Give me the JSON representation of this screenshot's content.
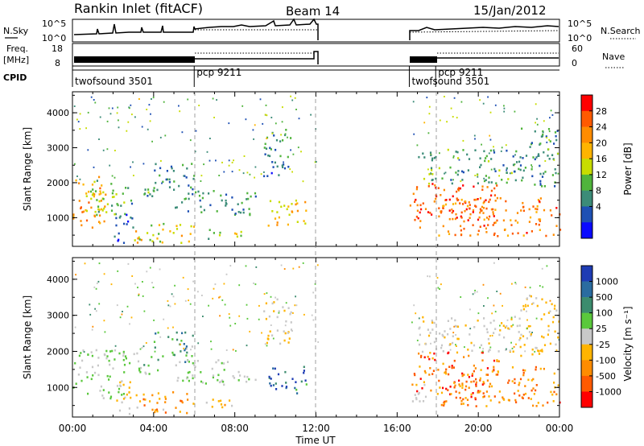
{
  "header": {
    "title": "Rankin Inlet (fitACF)",
    "beam": "Beam 14",
    "date": "15/Jan/2012"
  },
  "params": {
    "nsky_label": "N.Sky",
    "nsky_ticks": [
      "10^5",
      "10^0"
    ],
    "nsearch_label": "N.Search",
    "nsearch_ticks": [
      "10^5",
      "10^0"
    ],
    "freq_label": "Freq.",
    "freq_unit": "[MHz]",
    "freq_ticks": [
      "18",
      "8"
    ],
    "nave_label": "Nave",
    "nave_ticks": [
      "60",
      "0"
    ],
    "cpid_label": "CPID",
    "cpid_segments": [
      {
        "label": "twofsound 3501",
        "start": 0.0,
        "end": 6.0
      },
      {
        "label": "pcp 9211",
        "start": 6.0,
        "end": 12.1
      },
      {
        "label": "twofsound 3501",
        "start": 16.6,
        "end": 17.9
      },
      {
        "label": "pcp 9211",
        "start": 17.9,
        "end": 24.0
      }
    ]
  },
  "panels": {
    "power": {
      "ylabel": "Slant Range [km]",
      "cb_label": "Power [dB]",
      "cb_ticks": [
        "28",
        "24",
        "20",
        "16",
        "12",
        "8",
        "4"
      ],
      "cb_colors": [
        "#ff0000",
        "#ff5a00",
        "#ff8c00",
        "#ffb400",
        "#c8dc00",
        "#50b43c",
        "#3c8c78",
        "#1e50b4",
        "#0a0aff"
      ]
    },
    "velocity": {
      "ylabel": "Slant Range [km]",
      "cb_label": "Velocity [m s⁻¹]",
      "cb_ticks": [
        "1000",
        "500",
        "100",
        "25",
        "-25",
        "-100",
        "-500",
        "-1000"
      ],
      "cb_colors": [
        "#1e3cb4",
        "#2a6ca0",
        "#3c8c6e",
        "#5ac83c",
        "#c8c8c8",
        "#ffb400",
        "#ff8c00",
        "#ff5a00",
        "#ff0000"
      ]
    }
  },
  "axes": {
    "xlabel": "Time UT",
    "xticks": [
      "00:00",
      "04:00",
      "08:00",
      "12:00",
      "16:00",
      "20:00",
      "00:00"
    ],
    "yticks": [
      "1000",
      "2000",
      "3000",
      "4000"
    ]
  },
  "chart_data": [
    {
      "type": "heatmap",
      "title": "Power",
      "xlabel": "Time UT",
      "ylabel": "Slant Range [km]",
      "xlim": [
        0,
        24
      ],
      "ylim": [
        180,
        4600
      ],
      "colorbar_label": "Power [dB]",
      "colorbar_range": [
        0,
        32
      ],
      "blobs": [
        {
          "t0": 0.0,
          "t1": 1.6,
          "r0": 600,
          "r1": 2200,
          "v": 22
        },
        {
          "t0": 0.4,
          "t1": 2.6,
          "r0": 1100,
          "r1": 2100,
          "v": 13
        },
        {
          "t0": 2.0,
          "t1": 3.0,
          "r0": 250,
          "r1": 1200,
          "v": 6
        },
        {
          "t0": 2.5,
          "t1": 4.0,
          "r0": 1400,
          "r1": 2000,
          "v": 10
        },
        {
          "t0": 3.0,
          "t1": 6.0,
          "r0": 300,
          "r1": 900,
          "v": 18
        },
        {
          "t0": 4.0,
          "t1": 6.0,
          "r0": 1700,
          "r1": 2600,
          "v": 9
        },
        {
          "t0": 5.0,
          "t1": 9.0,
          "r0": 1100,
          "r1": 1800,
          "v": 9
        },
        {
          "t0": 6.5,
          "t1": 8.5,
          "r0": 400,
          "r1": 700,
          "v": 14
        },
        {
          "t0": 9.6,
          "t1": 11.6,
          "r0": 800,
          "r1": 1600,
          "v": 20
        },
        {
          "t0": 9.4,
          "t1": 10.8,
          "r0": 2200,
          "r1": 3600,
          "v": 8
        },
        {
          "t0": 16.6,
          "t1": 21.0,
          "r0": 700,
          "r1": 2000,
          "v": 27
        },
        {
          "t0": 18.0,
          "t1": 24.0,
          "r0": 500,
          "r1": 1600,
          "v": 24
        },
        {
          "t0": 17.0,
          "t1": 22.0,
          "r0": 2000,
          "r1": 3000,
          "v": 11
        },
        {
          "t0": 22.0,
          "t1": 24.0,
          "r0": 1900,
          "r1": 3600,
          "v": 9
        }
      ]
    },
    {
      "type": "heatmap",
      "title": "Velocity",
      "xlabel": "Time UT",
      "ylabel": "Slant Range [km]",
      "xlim": [
        0,
        24
      ],
      "ylim": [
        180,
        4600
      ],
      "colorbar_label": "Velocity [m s⁻¹]",
      "colorbar_range": [
        -1000,
        1000
      ],
      "blobs": [
        {
          "t0": 0.0,
          "t1": 2.6,
          "r0": 700,
          "r1": 2100,
          "v": 150
        },
        {
          "t0": 2.0,
          "t1": 3.2,
          "r0": 250,
          "r1": 1200,
          "v": -150
        },
        {
          "t0": 2.5,
          "t1": 4.2,
          "r0": 1400,
          "r1": 2000,
          "v": 200
        },
        {
          "t0": 3.0,
          "t1": 6.0,
          "r0": 300,
          "r1": 900,
          "v": -400
        },
        {
          "t0": 4.0,
          "t1": 6.0,
          "r0": 1700,
          "r1": 2600,
          "v": 400
        },
        {
          "t0": 5.0,
          "t1": 9.0,
          "r0": 1100,
          "r1": 1800,
          "v": 60
        },
        {
          "t0": 6.5,
          "t1": 8.5,
          "r0": 400,
          "r1": 700,
          "v": -200
        },
        {
          "t0": 9.6,
          "t1": 11.6,
          "r0": 800,
          "r1": 1600,
          "v": 700
        },
        {
          "t0": 9.4,
          "t1": 10.8,
          "r0": 2200,
          "r1": 3600,
          "v": -120
        },
        {
          "t0": 16.6,
          "t1": 21.0,
          "r0": 700,
          "r1": 2000,
          "v": -600
        },
        {
          "t0": 18.0,
          "t1": 24.0,
          "r0": 500,
          "r1": 1600,
          "v": -450
        },
        {
          "t0": 16.6,
          "t1": 17.6,
          "r0": 600,
          "r1": 1200,
          "v": 0
        },
        {
          "t0": 17.0,
          "t1": 22.0,
          "r0": 2000,
          "r1": 3000,
          "v": -60
        },
        {
          "t0": 22.0,
          "t1": 24.0,
          "r0": 1900,
          "r1": 3600,
          "v": -150
        }
      ]
    }
  ]
}
